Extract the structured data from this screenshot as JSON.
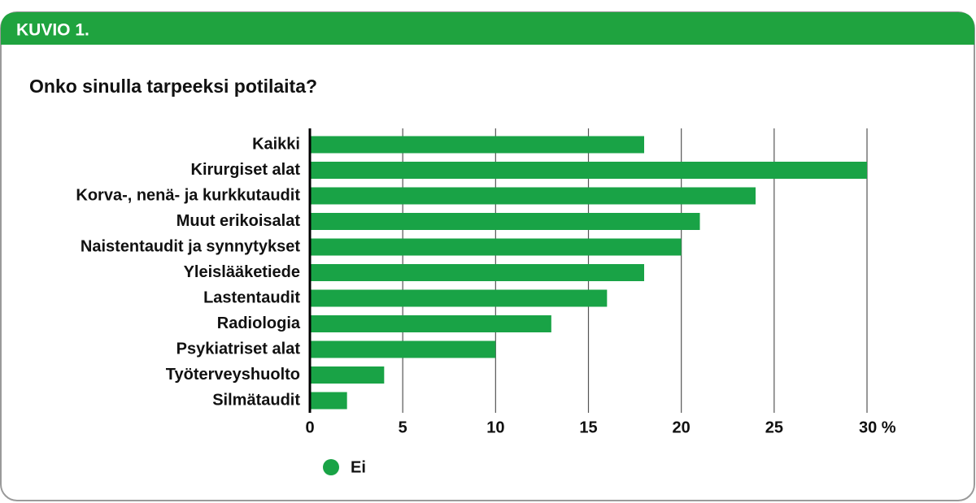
{
  "header": "KUVIO 1.",
  "chart_data": {
    "type": "bar",
    "orientation": "horizontal",
    "title": "Onko sinulla tarpeeksi potilaita?",
    "categories": [
      "Kaikki",
      "Kirurgiset alat",
      "Korva-, nenä- ja kurkkutaudit",
      "Muut erikoisalat",
      "Naistentaudit ja synnytykset",
      "Yleislääketiede",
      "Lastentaudit",
      "Radiologia",
      "Psykiatriset alat",
      "Työterveyshuolto",
      "Silmätaudit"
    ],
    "series": [
      {
        "name": "Ei",
        "color": "#19a346",
        "values": [
          18,
          30,
          24,
          21,
          20,
          18,
          16,
          13,
          10,
          4,
          2
        ]
      }
    ],
    "xlim": [
      0,
      30
    ],
    "xticks": [
      0,
      5,
      10,
      15,
      20,
      25,
      {
        "value": 30,
        "label": "30 %"
      }
    ],
    "grid": true,
    "legend": "bottom"
  }
}
